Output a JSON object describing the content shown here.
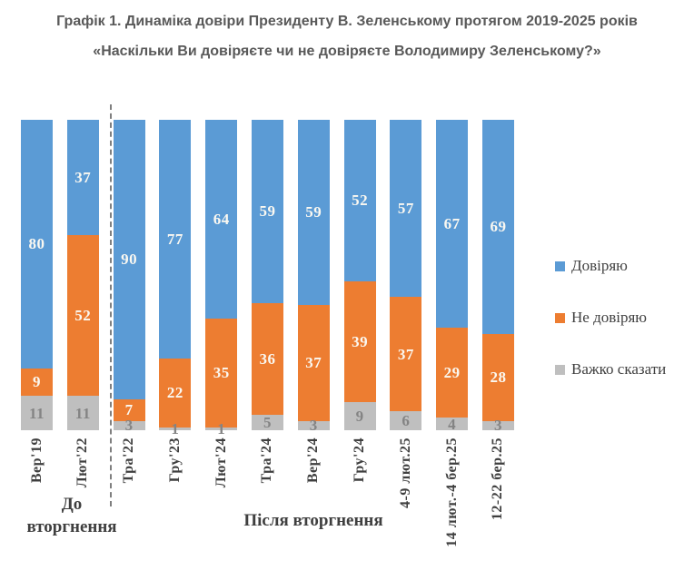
{
  "title": {
    "line1": "Графік 1. Динаміка довіри Президенту В. Зеленському протягом 2019-2025 років",
    "line2": "«Наскільки Ви довіряєте чи не довіряєте Володимиру Зеленському?»"
  },
  "chart_data": {
    "type": "bar",
    "stacked": true,
    "percent_stacked": true,
    "title": "Графік 1. Динаміка довіри Президенту В. Зеленському протягом 2019-2025 років",
    "subtitle": "«Наскільки Ви довіряєте чи не довіряєте Володимиру Зеленському?»",
    "categories": [
      "Вер'19",
      "Лют'22",
      "Тра'22",
      "Гру'23",
      "Лют'24",
      "Тра'24",
      "Вер'24",
      "Гру'24",
      "4-9 лют.25",
      "14 лют.-4 бер.25",
      "12-22 бер.25"
    ],
    "series": [
      {
        "key": "trust",
        "name": "Довіряю",
        "color": "#5B9BD5",
        "label_color": "#FAF8F1",
        "values": [
          80,
          37,
          90,
          77,
          64,
          59,
          59,
          52,
          57,
          67,
          69
        ]
      },
      {
        "key": "distrust",
        "name": "Не довіряю",
        "color": "#ED7D31",
        "label_color": "#FAF8F1",
        "values": [
          9,
          52,
          7,
          22,
          35,
          36,
          37,
          39,
          37,
          29,
          28
        ]
      },
      {
        "key": "hard-to-say",
        "name": "Важко сказати",
        "color": "#BFBFBF",
        "label_color": "#848484",
        "values": [
          11,
          11,
          3,
          1,
          1,
          5,
          3,
          9,
          6,
          4,
          3
        ]
      }
    ],
    "legend": {
      "position": "right",
      "entries": [
        "Довіряю",
        "Не довіряю",
        "Важко сказати"
      ]
    },
    "annotations": {
      "group_labels": [
        {
          "label": "До вторгнення",
          "categories_span": [
            0,
            1
          ]
        },
        {
          "label": "Після вторгнення",
          "categories_span": [
            2,
            10
          ]
        }
      ],
      "divider": "dashed vertical line between Лют'22 and Тра'22"
    },
    "axis": {
      "value_range": [
        0,
        100
      ],
      "gridlines": false,
      "value_axis_visible": false
    }
  },
  "colors": {
    "trust_blue": "#5B9BD5",
    "distrust_orange": "#ED7D31",
    "hard_to_say_gray": "#BFBFBF",
    "title_text": "#595959",
    "axis_text": "#3F3F3F",
    "divider": "#7F7F7F"
  }
}
